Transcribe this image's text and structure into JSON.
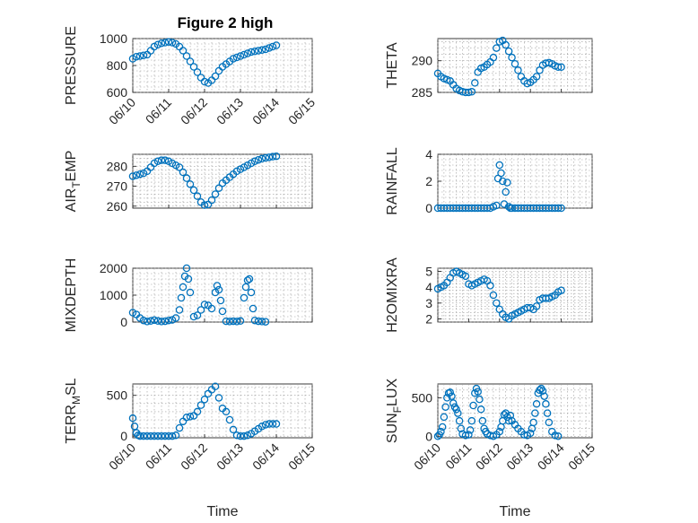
{
  "figure_title": "Figure 2 high",
  "colors": {
    "marker": "#0072BD",
    "axis": "#262626",
    "grid": "#9a9a9a"
  },
  "chart_data": [
    {
      "type": "scatter",
      "title": "Figure 2 high",
      "ylabel": "PRESSURE",
      "ylabel_sub": null,
      "xlabel": "",
      "ylim": [
        600,
        1000
      ],
      "yticks": [
        600,
        800,
        1000
      ],
      "xlim": [
        0,
        5
      ],
      "xtick_labels": [
        "06/10",
        "06/11",
        "06/12",
        "06/13",
        "06/14",
        "06/15"
      ],
      "x": [
        0,
        0.1,
        0.2,
        0.3,
        0.4,
        0.5,
        0.6,
        0.7,
        0.8,
        0.9,
        1.0,
        1.1,
        1.2,
        1.3,
        1.4,
        1.5,
        1.6,
        1.7,
        1.8,
        1.9,
        2.0,
        2.1,
        2.2,
        2.3,
        2.4,
        2.5,
        2.6,
        2.7,
        2.8,
        2.9,
        3.0,
        3.1,
        3.2,
        3.3,
        3.4,
        3.5,
        3.6,
        3.7,
        3.8,
        3.9,
        4.0
      ],
      "y": [
        850,
        865,
        870,
        875,
        880,
        910,
        940,
        955,
        965,
        970,
        975,
        970,
        960,
        940,
        910,
        870,
        830,
        790,
        750,
        710,
        680,
        670,
        690,
        720,
        760,
        790,
        810,
        830,
        850,
        860,
        870,
        880,
        890,
        900,
        905,
        910,
        915,
        920,
        930,
        940,
        950
      ],
      "grid": "major+minor"
    },
    {
      "type": "scatter",
      "ylabel": "THETA",
      "ylabel_sub": null,
      "ylim": [
        285,
        293.5
      ],
      "yticks": [
        285,
        290
      ],
      "xlim": [
        0,
        5
      ],
      "x": [
        0,
        0.1,
        0.2,
        0.3,
        0.4,
        0.5,
        0.6,
        0.7,
        0.8,
        0.9,
        1.0,
        1.1,
        1.2,
        1.3,
        1.4,
        1.5,
        1.6,
        1.7,
        1.8,
        1.9,
        2.0,
        2.1,
        2.2,
        2.3,
        2.4,
        2.5,
        2.6,
        2.7,
        2.8,
        2.9,
        3.0,
        3.1,
        3.2,
        3.3,
        3.4,
        3.5,
        3.6,
        3.7,
        3.8,
        3.9,
        4.0
      ],
      "y": [
        288,
        287.5,
        287.2,
        287,
        286.8,
        286.2,
        285.6,
        285.3,
        285.1,
        285.0,
        285.0,
        285.1,
        286.5,
        288.2,
        288.8,
        289.0,
        289.4,
        289.8,
        290.5,
        292.0,
        293.0,
        293.2,
        292.5,
        291.5,
        290.5,
        289.5,
        288.5,
        287.5,
        286.8,
        286.4,
        286.6,
        287.0,
        287.5,
        288.5,
        289.3,
        289.6,
        289.7,
        289.5,
        289.2,
        289.0,
        289.0
      ],
      "grid": "major+minor"
    },
    {
      "type": "scatter",
      "ylabel": "AIR",
      "ylabel_sub": "T",
      "ylabel_rest": "EMP",
      "ylim": [
        259,
        286
      ],
      "yticks": [
        260,
        270,
        280
      ],
      "xlim": [
        0,
        5
      ],
      "x": [
        0,
        0.1,
        0.2,
        0.3,
        0.4,
        0.5,
        0.6,
        0.7,
        0.8,
        0.9,
        1.0,
        1.1,
        1.2,
        1.3,
        1.4,
        1.5,
        1.6,
        1.7,
        1.8,
        1.9,
        2.0,
        2.1,
        2.2,
        2.3,
        2.4,
        2.5,
        2.6,
        2.7,
        2.8,
        2.9,
        3.0,
        3.1,
        3.2,
        3.3,
        3.4,
        3.5,
        3.6,
        3.7,
        3.8,
        3.9,
        4.0
      ],
      "y": [
        275,
        275.5,
        276,
        276.5,
        277.5,
        279.5,
        281.5,
        282.5,
        283,
        283,
        282.5,
        281.5,
        280.5,
        279.5,
        277,
        274,
        271,
        268,
        265,
        262,
        260.5,
        260.8,
        263,
        266,
        269,
        271.5,
        273,
        274.5,
        276,
        277.5,
        278.5,
        279.5,
        280.5,
        281.5,
        282.5,
        283.2,
        283.8,
        284.2,
        284.5,
        284.8,
        285
      ],
      "grid": "major+minor"
    },
    {
      "type": "scatter",
      "ylabel": "RAINFALL",
      "ylabel_sub": null,
      "ylim": [
        0,
        4
      ],
      "yticks": [
        0,
        2,
        4
      ],
      "xlim": [
        0,
        5
      ],
      "x": [
        0,
        0.1,
        0.2,
        0.3,
        0.4,
        0.5,
        0.6,
        0.7,
        0.8,
        0.9,
        1.0,
        1.1,
        1.2,
        1.3,
        1.4,
        1.5,
        1.6,
        1.7,
        1.8,
        1.9,
        1.95,
        2.0,
        2.05,
        2.1,
        2.15,
        2.2,
        2.25,
        2.3,
        2.35,
        2.4,
        2.5,
        2.6,
        2.7,
        2.8,
        2.9,
        3.0,
        3.1,
        3.2,
        3.3,
        3.4,
        3.5,
        3.6,
        3.7,
        3.8,
        3.9,
        4.0
      ],
      "y": [
        0,
        0,
        0,
        0,
        0,
        0,
        0,
        0,
        0,
        0,
        0,
        0,
        0,
        0,
        0,
        0,
        0,
        0,
        0.1,
        0.2,
        2.2,
        3.2,
        2.6,
        2.0,
        0.3,
        1.2,
        1.9,
        0.1,
        0,
        0,
        0,
        0,
        0,
        0,
        0,
        0,
        0,
        0,
        0,
        0,
        0,
        0,
        0,
        0,
        0,
        0
      ],
      "grid": "major+minor"
    },
    {
      "type": "scatter",
      "ylabel": "MIXDEPTH",
      "ylabel_sub": null,
      "ylim": [
        0,
        2000
      ],
      "yticks": [
        0,
        1000,
        2000
      ],
      "xlim": [
        0,
        5
      ],
      "x": [
        0,
        0.1,
        0.2,
        0.3,
        0.4,
        0.5,
        0.6,
        0.7,
        0.8,
        0.9,
        1.0,
        1.1,
        1.2,
        1.3,
        1.35,
        1.4,
        1.45,
        1.5,
        1.55,
        1.6,
        1.7,
        1.8,
        1.9,
        2.0,
        2.1,
        2.2,
        2.3,
        2.35,
        2.4,
        2.45,
        2.5,
        2.6,
        2.7,
        2.8,
        2.9,
        3.0,
        3.1,
        3.15,
        3.2,
        3.25,
        3.3,
        3.35,
        3.4,
        3.5,
        3.6,
        3.7
      ],
      "y": [
        350,
        280,
        150,
        60,
        20,
        40,
        70,
        40,
        20,
        30,
        60,
        80,
        150,
        450,
        900,
        1300,
        1700,
        2000,
        1600,
        1100,
        200,
        250,
        450,
        650,
        620,
        500,
        1100,
        1350,
        1200,
        800,
        400,
        30,
        20,
        30,
        20,
        40,
        900,
        1300,
        1550,
        1600,
        1100,
        500,
        60,
        30,
        20,
        10
      ],
      "grid": "major+minor"
    },
    {
      "type": "scatter",
      "ylabel": "H2OMIXRA",
      "ylabel_sub": null,
      "ylim": [
        1.8,
        5.2
      ],
      "yticks": [
        2,
        3,
        4,
        5
      ],
      "xlim": [
        0,
        5
      ],
      "x": [
        0,
        0.1,
        0.2,
        0.3,
        0.4,
        0.5,
        0.6,
        0.7,
        0.8,
        0.9,
        1.0,
        1.1,
        1.2,
        1.3,
        1.4,
        1.5,
        1.6,
        1.7,
        1.8,
        1.9,
        2.0,
        2.1,
        2.2,
        2.3,
        2.4,
        2.5,
        2.6,
        2.7,
        2.8,
        2.9,
        3.0,
        3.1,
        3.2,
        3.3,
        3.4,
        3.5,
        3.6,
        3.7,
        3.8,
        3.9,
        4.0
      ],
      "y": [
        3.9,
        4.0,
        4.1,
        4.3,
        4.6,
        4.9,
        5.0,
        4.9,
        4.8,
        4.7,
        4.2,
        4.1,
        4.2,
        4.3,
        4.4,
        4.5,
        4.4,
        4.1,
        3.5,
        3.0,
        2.6,
        2.3,
        2.1,
        2.0,
        2.2,
        2.3,
        2.4,
        2.5,
        2.6,
        2.7,
        2.7,
        2.6,
        2.8,
        3.2,
        3.3,
        3.3,
        3.3,
        3.4,
        3.5,
        3.7,
        3.8
      ],
      "grid": "major+minor"
    },
    {
      "type": "scatter",
      "ylabel": "TERR",
      "ylabel_sub": "M",
      "ylabel_rest": "SL",
      "ylim": [
        -20,
        640
      ],
      "yticks": [
        0,
        500
      ],
      "xlim": [
        0,
        5
      ],
      "xtick_labels": [
        "06/10",
        "06/11",
        "06/12",
        "06/13",
        "06/14",
        "06/15"
      ],
      "xlabel": "Time",
      "x": [
        0,
        0.05,
        0.1,
        0.15,
        0.2,
        0.3,
        0.4,
        0.5,
        0.6,
        0.7,
        0.8,
        0.9,
        1.0,
        1.1,
        1.2,
        1.3,
        1.4,
        1.5,
        1.6,
        1.7,
        1.8,
        1.9,
        2.0,
        2.1,
        2.2,
        2.3,
        2.4,
        2.5,
        2.6,
        2.7,
        2.8,
        2.9,
        3.0,
        3.1,
        3.2,
        3.3,
        3.4,
        3.5,
        3.6,
        3.7,
        3.8,
        3.9,
        4.0
      ],
      "y": [
        220,
        120,
        40,
        10,
        0,
        0,
        0,
        0,
        0,
        0,
        0,
        0,
        0,
        0,
        10,
        100,
        180,
        230,
        240,
        250,
        300,
        380,
        450,
        520,
        570,
        610,
        470,
        340,
        300,
        200,
        80,
        10,
        0,
        0,
        10,
        30,
        60,
        90,
        120,
        140,
        150,
        150,
        150
      ],
      "grid": "major+minor"
    },
    {
      "type": "scatter",
      "ylabel": "SUN",
      "ylabel_sub": "F",
      "ylabel_rest": "LUX",
      "ylim": [
        -20,
        680
      ],
      "yticks": [
        0,
        500
      ],
      "xlim": [
        0,
        5
      ],
      "xtick_labels": [
        "06/10",
        "06/11",
        "06/12",
        "06/13",
        "06/14",
        "06/15"
      ],
      "xlabel": "Time",
      "x": [
        0,
        0.05,
        0.1,
        0.15,
        0.2,
        0.25,
        0.3,
        0.35,
        0.4,
        0.45,
        0.5,
        0.55,
        0.6,
        0.65,
        0.7,
        0.75,
        0.8,
        0.9,
        1.0,
        1.05,
        1.1,
        1.15,
        1.2,
        1.25,
        1.3,
        1.35,
        1.4,
        1.45,
        1.5,
        1.55,
        1.6,
        1.7,
        1.8,
        1.9,
        2.0,
        2.05,
        2.1,
        2.15,
        2.2,
        2.25,
        2.3,
        2.35,
        2.4,
        2.5,
        2.6,
        2.7,
        2.8,
        2.9,
        3.0,
        3.05,
        3.1,
        3.15,
        3.2,
        3.25,
        3.3,
        3.35,
        3.4,
        3.45,
        3.5,
        3.55,
        3.6,
        3.7,
        3.8,
        3.9
      ],
      "y": [
        0,
        20,
        60,
        120,
        250,
        380,
        500,
        560,
        570,
        520,
        430,
        380,
        350,
        300,
        200,
        100,
        30,
        10,
        20,
        80,
        200,
        400,
        560,
        620,
        580,
        480,
        350,
        200,
        100,
        60,
        30,
        10,
        0,
        20,
        60,
        120,
        200,
        280,
        300,
        250,
        200,
        270,
        200,
        150,
        100,
        60,
        20,
        10,
        40,
        100,
        180,
        300,
        420,
        560,
        600,
        620,
        590,
        520,
        420,
        300,
        180,
        60,
        10,
        0
      ],
      "grid": "major+minor"
    }
  ]
}
